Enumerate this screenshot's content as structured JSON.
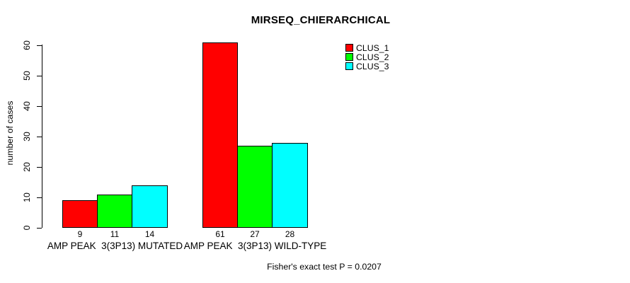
{
  "chart_data": {
    "type": "bar",
    "title": "MIRSEQ_CHIERARCHICAL",
    "xlabel": "",
    "ylabel": "number of cases",
    "ylim": [
      0,
      60
    ],
    "yticks": [
      0,
      10,
      20,
      30,
      40,
      50,
      60
    ],
    "grid": false,
    "categories": [
      "AMP PEAK  3(3P13) MUTATED",
      "AMP PEAK  3(3P13) WILD-TYPE"
    ],
    "series": [
      {
        "name": "CLUS_1",
        "color": "#FF0000",
        "values": [
          9,
          61
        ]
      },
      {
        "name": "CLUS_2",
        "color": "#00FF00",
        "values": [
          11,
          27
        ]
      },
      {
        "name": "CLUS_3",
        "color": "#00FFFF",
        "values": [
          14,
          28
        ]
      }
    ],
    "value_labels": [
      [
        "9",
        "11",
        "14"
      ],
      [
        "61",
        "27",
        "28"
      ]
    ],
    "legend_position": "top-right",
    "footnote": "Fisher's exact test P = 0.0207"
  },
  "colors": {
    "background": "#FFFFFF",
    "axis": "#000000",
    "text": "#000000",
    "bar_border": "#000000"
  }
}
